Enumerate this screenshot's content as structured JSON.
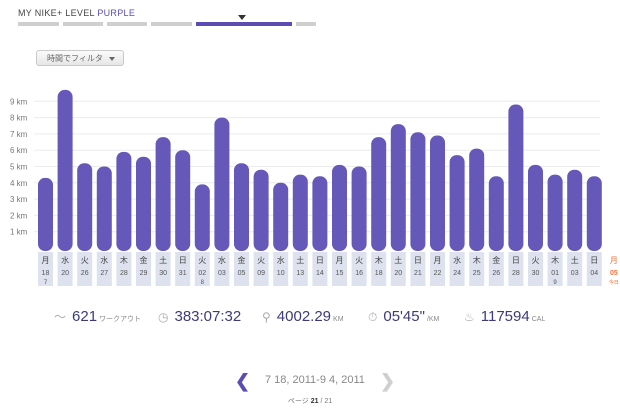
{
  "level": {
    "prefix": "MY NIKE+ LEVEL",
    "name": "PURPLE"
  },
  "filter": {
    "label": "時間でフィルタ"
  },
  "chart_data": {
    "type": "bar",
    "ylabel_unit": "km",
    "ylim": [
      0,
      10
    ],
    "yticks": [
      "1 km",
      "2 km",
      "3 km",
      "4 km",
      "5 km",
      "6 km",
      "7 km",
      "8 km",
      "9 km"
    ],
    "categories": [
      {
        "day": "月",
        "date": "18",
        "month": "7"
      },
      {
        "day": "水",
        "date": "20",
        "month": ""
      },
      {
        "day": "火",
        "date": "26",
        "month": ""
      },
      {
        "day": "水",
        "date": "27",
        "month": ""
      },
      {
        "day": "木",
        "date": "28",
        "month": ""
      },
      {
        "day": "金",
        "date": "29",
        "month": ""
      },
      {
        "day": "土",
        "date": "30",
        "month": ""
      },
      {
        "day": "日",
        "date": "31",
        "month": ""
      },
      {
        "day": "火",
        "date": "02",
        "month": "8"
      },
      {
        "day": "水",
        "date": "03",
        "month": ""
      },
      {
        "day": "金",
        "date": "05",
        "month": ""
      },
      {
        "day": "火",
        "date": "09",
        "month": ""
      },
      {
        "day": "水",
        "date": "10",
        "month": ""
      },
      {
        "day": "土",
        "date": "13",
        "month": ""
      },
      {
        "day": "日",
        "date": "14",
        "month": ""
      },
      {
        "day": "月",
        "date": "15",
        "month": ""
      },
      {
        "day": "火",
        "date": "16",
        "month": ""
      },
      {
        "day": "木",
        "date": "18",
        "month": ""
      },
      {
        "day": "土",
        "date": "20",
        "month": ""
      },
      {
        "day": "日",
        "date": "21",
        "month": ""
      },
      {
        "day": "月",
        "date": "22",
        "month": ""
      },
      {
        "day": "水",
        "date": "24",
        "month": ""
      },
      {
        "day": "木",
        "date": "25",
        "month": ""
      },
      {
        "day": "金",
        "date": "26",
        "month": ""
      },
      {
        "day": "日",
        "date": "28",
        "month": ""
      },
      {
        "day": "火",
        "date": "30",
        "month": ""
      },
      {
        "day": "木",
        "date": "01",
        "month": "9"
      },
      {
        "day": "土",
        "date": "03",
        "month": ""
      },
      {
        "day": "日",
        "date": "04",
        "month": ""
      }
    ],
    "values": [
      4.3,
      9.7,
      5.2,
      5.0,
      5.9,
      5.6,
      6.8,
      6.0,
      3.9,
      8.0,
      5.2,
      4.8,
      4.0,
      4.5,
      4.4,
      5.1,
      5.0,
      6.8,
      7.6,
      7.1,
      6.9,
      5.7,
      6.1,
      4.4,
      8.8,
      5.1,
      4.5,
      4.8,
      4.4
    ],
    "today": {
      "day": "月",
      "date": "05",
      "note": "今日"
    },
    "bar_color": "#6558b8"
  },
  "stats": {
    "workouts": {
      "value": "621",
      "unit": "ワークアウト"
    },
    "duration": {
      "value": "383:07:32"
    },
    "distance": {
      "value": "4002.29",
      "unit": "KM"
    },
    "pace": {
      "value": "05'45\"",
      "unit": "/KM"
    },
    "calories": {
      "value": "117594",
      "unit": "CAL"
    }
  },
  "pager": {
    "range": "7 18, 2011-9 4, 2011",
    "page_label": "ページ",
    "page": "21",
    "sep": "/",
    "total": "21"
  }
}
